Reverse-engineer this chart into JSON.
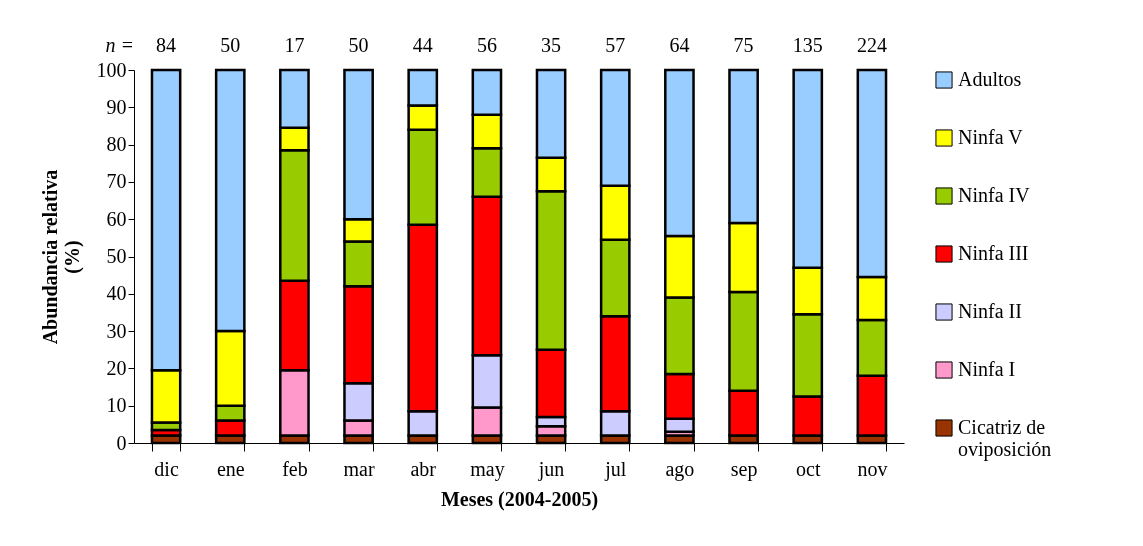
{
  "chart_data": {
    "type": "bar",
    "stacked": true,
    "categories": [
      "dic",
      "ene",
      "feb",
      "mar",
      "abr",
      "may",
      "jun",
      "jul",
      "ago",
      "sep",
      "oct",
      "nov"
    ],
    "xlabel": "Meses (2004-2005)",
    "ylabel": "Abundancia relativa (%)",
    "ylim": [
      0,
      100
    ],
    "yticks": [
      0,
      10,
      20,
      30,
      40,
      50,
      60,
      70,
      80,
      90,
      100
    ],
    "grid": false,
    "legend": "right",
    "annotations": [
      "n =",
      "84",
      "50",
      "17",
      "50",
      "44",
      "56",
      "35",
      "57",
      "64",
      "75",
      "135",
      "224"
    ],
    "series": [
      {
        "name": "Cicatriz de oviposición",
        "color": "#993300",
        "values": [
          2,
          2,
          2,
          2,
          2,
          2,
          2,
          2,
          2,
          2,
          2,
          2
        ]
      },
      {
        "name": "Ninfa I",
        "color": "#ff99cc",
        "values": [
          null,
          null,
          17.5,
          4,
          null,
          7.5,
          2.5,
          null,
          1,
          null,
          null,
          null
        ]
      },
      {
        "name": "Ninfa II",
        "color": "#ccccff",
        "values": [
          null,
          null,
          null,
          10,
          6.5,
          14,
          2.5,
          6.5,
          3.5,
          null,
          null,
          null
        ]
      },
      {
        "name": "Ninfa III",
        "color": "#ff0000",
        "values": [
          1.5,
          4,
          24,
          26,
          50,
          42.5,
          18,
          25.5,
          12,
          12,
          10.5,
          16
        ]
      },
      {
        "name": "Ninfa IV",
        "color": "#99cc00",
        "values": [
          2,
          4,
          35,
          12,
          25.5,
          13,
          42.5,
          20.5,
          20.5,
          26.5,
          22,
          15
        ]
      },
      {
        "name": "Ninfa V",
        "color": "#ffff00",
        "values": [
          14,
          20,
          6,
          6,
          6.5,
          9,
          9,
          14.5,
          16.5,
          18.5,
          12.5,
          11.5
        ]
      },
      {
        "name": "Adultos",
        "color": "#99ccff",
        "values": [
          80.5,
          70,
          15.5,
          40,
          9.5,
          12,
          23.5,
          31,
          44.5,
          41,
          53,
          55.5
        ]
      }
    ]
  }
}
